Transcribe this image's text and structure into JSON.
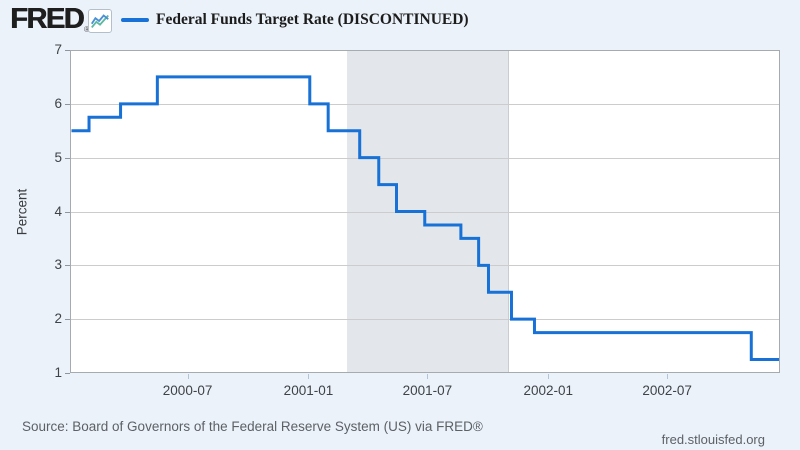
{
  "header": {
    "logo_text": "FRED",
    "logo_registered": "®",
    "legend": {
      "label": "Federal Funds Target Rate (DISCONTINUED)",
      "line_color": "#1771d6"
    }
  },
  "y_axis": {
    "title": "Percent"
  },
  "footer": {
    "source": "Source: Board of Governors of the Federal Reserve System (US) via FRED®",
    "site": "fred.stlouisfed.org"
  },
  "colors": {
    "background": "#ebf2fa",
    "plot_background": "#ffffff",
    "grid": "#cccccc",
    "plot_border": "#a6abb0",
    "recession_band": "#e3e7eb",
    "line": "#1771d6",
    "axis_text": "#3f4347",
    "footer_text": "#5d6166",
    "icon_blue": "#4b8fd4",
    "icon_teal": "#5cb8a2"
  },
  "chart_data": {
    "type": "line",
    "step": "after",
    "title": "Federal Funds Target Rate (DISCONTINUED)",
    "ylabel": "Percent",
    "xlabel": "",
    "ylim": [
      1,
      7
    ],
    "yticks": [
      1,
      2,
      3,
      4,
      5,
      6,
      7
    ],
    "x_range": [
      "2000-01-01",
      "2002-12-16"
    ],
    "xticks": [
      {
        "date": "2000-07-01",
        "label": "2000-07"
      },
      {
        "date": "2001-01-01",
        "label": "2001-01"
      },
      {
        "date": "2001-07-01",
        "label": "2001-07"
      },
      {
        "date": "2002-01-01",
        "label": "2002-01"
      },
      {
        "date": "2002-07-01",
        "label": "2002-07"
      }
    ],
    "grid": "horizontal",
    "legend_position": "top-left",
    "series": [
      {
        "name": "Federal Funds Target Rate (DISCONTINUED)",
        "color": "#1771d6",
        "points": [
          {
            "date": "2000-01-01",
            "value": 5.5
          },
          {
            "date": "2000-02-02",
            "value": 5.75
          },
          {
            "date": "2000-03-21",
            "value": 6.0
          },
          {
            "date": "2000-05-16",
            "value": 6.5
          },
          {
            "date": "2001-01-03",
            "value": 6.0
          },
          {
            "date": "2001-01-31",
            "value": 5.5
          },
          {
            "date": "2001-03-20",
            "value": 5.0
          },
          {
            "date": "2001-04-18",
            "value": 4.5
          },
          {
            "date": "2001-05-15",
            "value": 4.0
          },
          {
            "date": "2001-06-27",
            "value": 3.75
          },
          {
            "date": "2001-08-21",
            "value": 3.5
          },
          {
            "date": "2001-09-17",
            "value": 3.0
          },
          {
            "date": "2001-10-02",
            "value": 2.5
          },
          {
            "date": "2001-11-06",
            "value": 2.0
          },
          {
            "date": "2001-12-11",
            "value": 1.75
          },
          {
            "date": "2002-11-06",
            "value": 1.25
          }
        ]
      }
    ],
    "recession_bands": [
      {
        "start": "2001-03-01",
        "end": "2001-11-01"
      }
    ]
  }
}
